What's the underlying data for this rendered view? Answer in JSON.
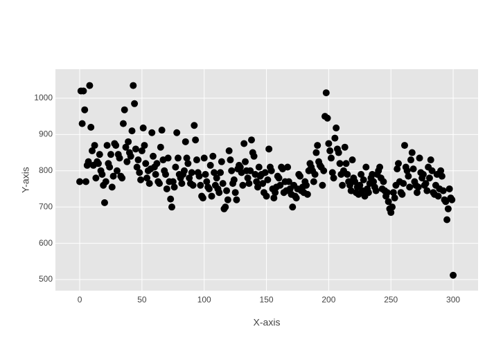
{
  "chart_data": {
    "type": "scatter",
    "x_label": "X-axis",
    "y_label": "Y-axis",
    "x": [
      0,
      1,
      2,
      3,
      4,
      5,
      6,
      7,
      8,
      9,
      10,
      11,
      12,
      13,
      14,
      15,
      16,
      17,
      18,
      19,
      20,
      21,
      22,
      23,
      24,
      25,
      26,
      27,
      28,
      29,
      30,
      31,
      32,
      33,
      34,
      35,
      36,
      37,
      38,
      39,
      40,
      41,
      42,
      43,
      44,
      45,
      46,
      47,
      48,
      49,
      50,
      51,
      52,
      53,
      54,
      55,
      56,
      57,
      58,
      59,
      60,
      61,
      62,
      63,
      64,
      65,
      66,
      67,
      68,
      69,
      70,
      71,
      72,
      73,
      74,
      75,
      76,
      77,
      78,
      79,
      80,
      81,
      82,
      83,
      84,
      85,
      86,
      87,
      88,
      89,
      90,
      91,
      92,
      93,
      94,
      95,
      96,
      97,
      98,
      99,
      100,
      101,
      102,
      103,
      104,
      105,
      106,
      107,
      108,
      109,
      110,
      111,
      112,
      113,
      114,
      115,
      116,
      117,
      118,
      119,
      120,
      121,
      122,
      123,
      124,
      125,
      126,
      127,
      128,
      129,
      130,
      131,
      132,
      133,
      134,
      135,
      136,
      137,
      138,
      139,
      140,
      141,
      142,
      143,
      144,
      145,
      146,
      147,
      148,
      149,
      150,
      151,
      152,
      153,
      154,
      155,
      156,
      157,
      158,
      159,
      160,
      161,
      162,
      163,
      164,
      165,
      166,
      167,
      168,
      169,
      170,
      171,
      172,
      173,
      174,
      175,
      176,
      177,
      178,
      179,
      180,
      181,
      182,
      183,
      184,
      185,
      186,
      187,
      188,
      189,
      190,
      191,
      192,
      193,
      194,
      195,
      196,
      197,
      198,
      199,
      200,
      201,
      202,
      203,
      204,
      205,
      206,
      207,
      208,
      209,
      210,
      211,
      212,
      213,
      214,
      215,
      216,
      217,
      218,
      219,
      220,
      221,
      222,
      223,
      224,
      225,
      226,
      227,
      228,
      229,
      230,
      231,
      232,
      233,
      234,
      235,
      236,
      237,
      238,
      239,
      240,
      241,
      242,
      243,
      244,
      245,
      246,
      247,
      248,
      249,
      250,
      251,
      252,
      253,
      254,
      255,
      256,
      257,
      258,
      259,
      260,
      261,
      262,
      263,
      264,
      265,
      266,
      267,
      268,
      269,
      270,
      271,
      272,
      273,
      274,
      275,
      276,
      277,
      278,
      279,
      280,
      281,
      282,
      283,
      284,
      285,
      286,
      287,
      288,
      289,
      290,
      291,
      292,
      293,
      294,
      295,
      296,
      297,
      298,
      299,
      300
    ],
    "values": [
      770,
      1020,
      930,
      1020,
      968,
      770,
      815,
      825,
      1035,
      920,
      855,
      815,
      870,
      780,
      825,
      820,
      845,
      800,
      790,
      760,
      712,
      770,
      870,
      820,
      810,
      845,
      755,
      785,
      875,
      870,
      800,
      845,
      835,
      785,
      780,
      930,
      968,
      865,
      825,
      880,
      850,
      840,
      910,
      1035,
      985,
      860,
      810,
      830,
      795,
      775,
      855,
      918,
      870,
      820,
      780,
      800,
      765,
      805,
      905,
      840,
      810,
      790,
      820,
      770,
      765,
      865,
      912,
      830,
      800,
      790,
      750,
      835,
      770,
      722,
      700,
      770,
      755,
      810,
      905,
      835,
      790,
      780,
      765,
      790,
      800,
      880,
      835,
      820,
      780,
      765,
      795,
      760,
      925,
      885,
      830,
      795,
      785,
      760,
      730,
      725,
      835,
      790,
      770,
      755,
      750,
      815,
      730,
      840,
      795,
      760,
      780,
      750,
      740,
      795,
      825,
      765,
      695,
      700,
      745,
      720,
      855,
      830,
      800,
      765,
      775,
      740,
      720,
      805,
      815,
      810,
      795,
      760,
      875,
      825,
      800,
      780,
      765,
      800,
      885,
      850,
      840,
      790,
      770,
      755,
      810,
      785,
      790,
      765,
      740,
      795,
      730,
      775,
      860,
      810,
      800,
      750,
      725,
      740,
      755,
      785,
      780,
      760,
      810,
      805,
      740,
      770,
      745,
      810,
      770,
      750,
      735,
      700,
      760,
      730,
      725,
      750,
      790,
      785,
      745,
      755,
      740,
      770,
      760,
      735,
      800,
      820,
      810,
      800,
      770,
      790,
      850,
      870,
      825,
      815,
      810,
      760,
      800,
      950,
      1015,
      945,
      875,
      855,
      835,
      795,
      780,
      890,
      918,
      860,
      850,
      820,
      790,
      760,
      800,
      865,
      820,
      790,
      770,
      760,
      745,
      830,
      780,
      770,
      740,
      755,
      735,
      760,
      790,
      745,
      775,
      730,
      810,
      750,
      740,
      765,
      780,
      790,
      770,
      755,
      745,
      790,
      800,
      810,
      780,
      750,
      770,
      745,
      730,
      740,
      715,
      695,
      685,
      700,
      740,
      725,
      760,
      805,
      820,
      770,
      740,
      735,
      765,
      870,
      810,
      800,
      785,
      755,
      830,
      850,
      805,
      770,
      760,
      740,
      755,
      835,
      795,
      780,
      790,
      760,
      765,
      745,
      810,
      780,
      830,
      800,
      740,
      735,
      760,
      790,
      730,
      750,
      800,
      785,
      745,
      720,
      715,
      665,
      695,
      750,
      725,
      720,
      512
    ],
    "color": "#000000",
    "xlim": [
      -19.5,
      320
    ],
    "ylim": [
      469.5,
      1080
    ],
    "xticks": [
      0,
      50,
      100,
      150,
      200,
      250,
      300
    ],
    "yticks": [
      500,
      600,
      700,
      800,
      900,
      1000
    ],
    "grid": true
  }
}
